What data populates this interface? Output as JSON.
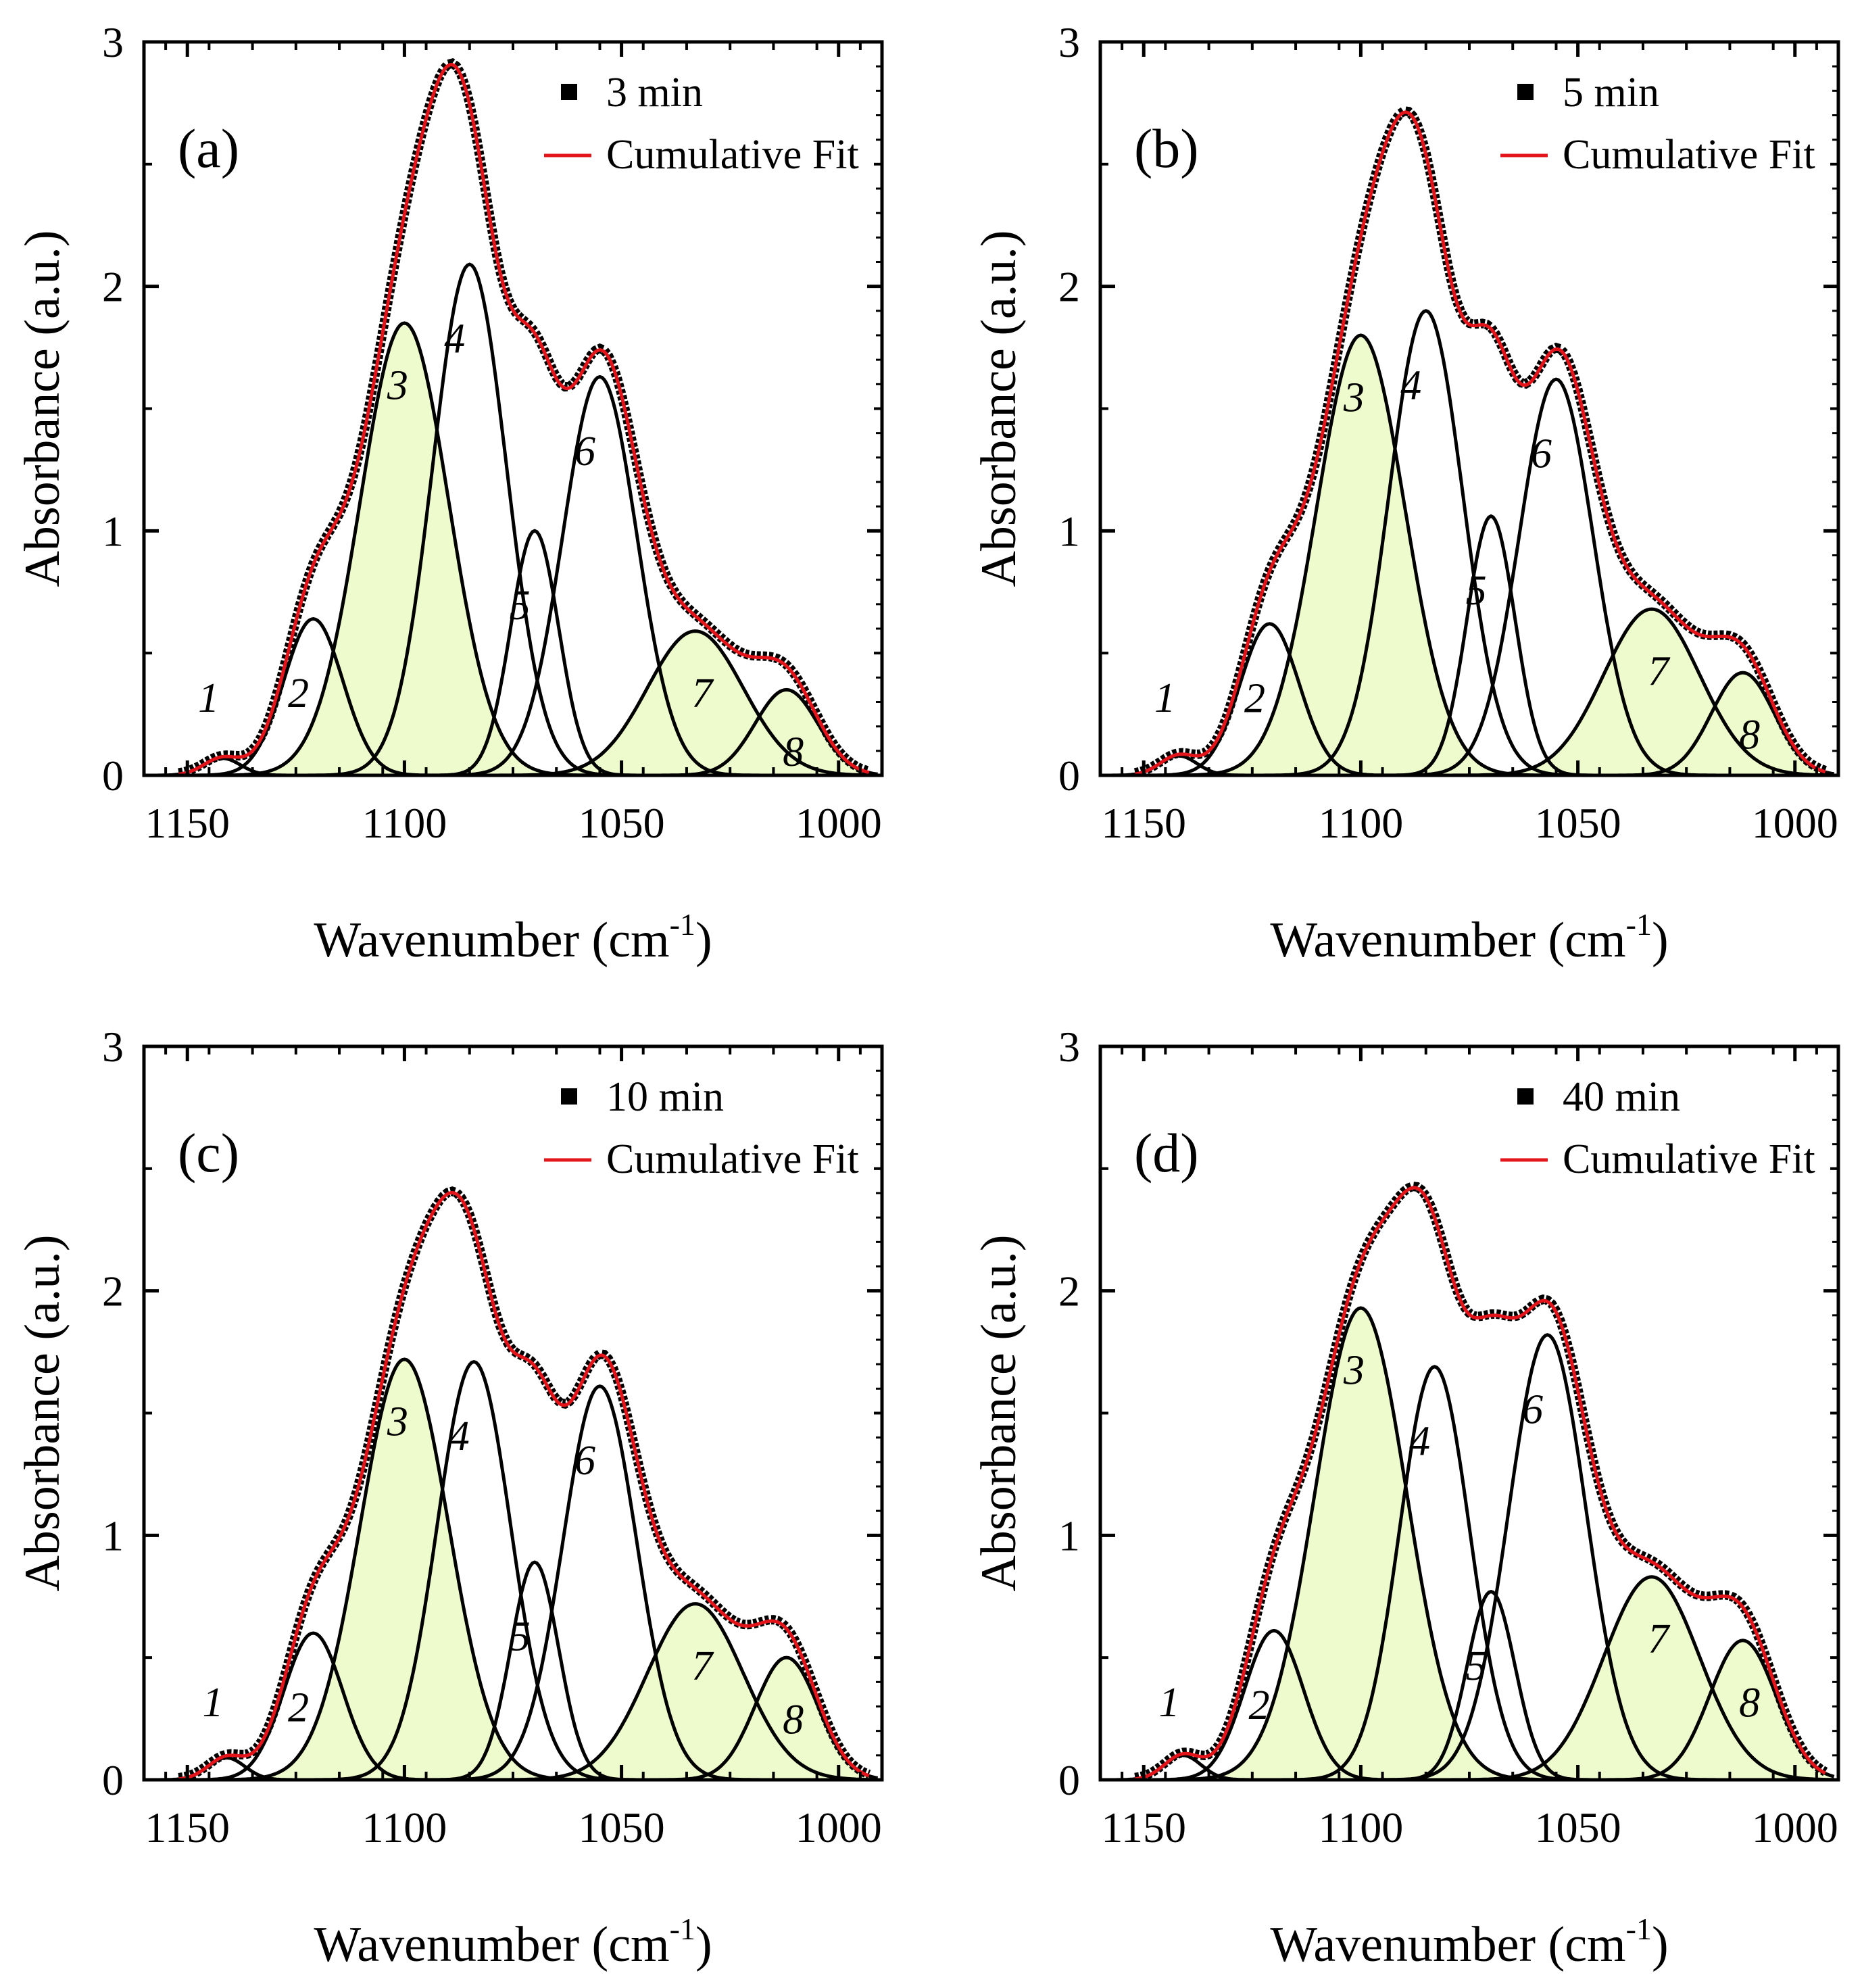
{
  "figure": {
    "colors": {
      "fill": "#eefbcc",
      "component": "#000000",
      "fit": "#e4141b",
      "data": "#000000"
    }
  },
  "chart_data": [
    {
      "type": "line",
      "panel_label": "(a)",
      "title": "",
      "xlabel": "Wavenumber (cm",
      "xlabel_sup": "-1",
      "xlabel_end": ")",
      "ylabel": "Absorbance (a.u.)",
      "xlim": [
        1160,
        990
      ],
      "ylim": [
        0,
        3
      ],
      "xticks": [
        1150,
        1100,
        1050,
        1000
      ],
      "yticks": [
        0,
        1,
        2,
        3
      ],
      "legend": [
        "3 min",
        "Cumulative Fit"
      ],
      "legend_position": "top-right",
      "peaks": [
        {
          "label": "1",
          "center": 1142,
          "amplitude": 0.07,
          "fwhm": 10,
          "filled": false
        },
        {
          "label": "2",
          "center": 1121,
          "amplitude": 0.64,
          "fwhm": 16,
          "filled": false
        },
        {
          "label": "3",
          "center": 1100,
          "amplitude": 1.85,
          "fwhm": 24,
          "filled": true
        },
        {
          "label": "4",
          "center": 1085,
          "amplitude": 2.09,
          "fwhm": 20,
          "filled": false
        },
        {
          "label": "5",
          "center": 1070,
          "amplitude": 1.0,
          "fwhm": 13,
          "filled": false
        },
        {
          "label": "6",
          "center": 1055,
          "amplitude": 1.63,
          "fwhm": 20,
          "filled": false
        },
        {
          "label": "7",
          "center": 1033,
          "amplitude": 0.59,
          "fwhm": 26,
          "filled": true
        },
        {
          "label": "8",
          "center": 1012,
          "amplitude": 0.35,
          "fwhm": 17,
          "filled": true
        }
      ]
    },
    {
      "type": "line",
      "panel_label": "(b)",
      "title": "",
      "xlabel": "Wavenumber (cm",
      "xlabel_sup": "-1",
      "xlabel_end": ")",
      "ylabel": "Absorbance (a.u.)",
      "xlim": [
        1160,
        990
      ],
      "ylim": [
        0,
        3
      ],
      "xticks": [
        1150,
        1100,
        1050,
        1000
      ],
      "yticks": [
        0,
        1,
        2,
        3
      ],
      "legend": [
        "5 min",
        "Cumulative Fit"
      ],
      "legend_position": "top-right",
      "peaks": [
        {
          "label": "1",
          "center": 1142,
          "amplitude": 0.08,
          "fwhm": 10,
          "filled": false
        },
        {
          "label": "2",
          "center": 1121,
          "amplitude": 0.62,
          "fwhm": 16,
          "filled": false
        },
        {
          "label": "3",
          "center": 1100,
          "amplitude": 1.8,
          "fwhm": 24,
          "filled": true
        },
        {
          "label": "4",
          "center": 1085,
          "amplitude": 1.9,
          "fwhm": 20,
          "filled": false
        },
        {
          "label": "5",
          "center": 1070,
          "amplitude": 1.06,
          "fwhm": 13,
          "filled": false
        },
        {
          "label": "6",
          "center": 1055,
          "amplitude": 1.62,
          "fwhm": 20,
          "filled": false
        },
        {
          "label": "7",
          "center": 1033,
          "amplitude": 0.68,
          "fwhm": 26,
          "filled": true
        },
        {
          "label": "8",
          "center": 1012,
          "amplitude": 0.42,
          "fwhm": 17,
          "filled": true
        }
      ]
    },
    {
      "type": "line",
      "panel_label": "(c)",
      "title": "",
      "xlabel": "Wavenumber (cm",
      "xlabel_sup": "-1",
      "xlabel_end": ")",
      "ylabel": "Absorbance (a.u.)",
      "xlim": [
        1160,
        990
      ],
      "ylim": [
        0,
        3
      ],
      "xticks": [
        1150,
        1100,
        1050,
        1000
      ],
      "yticks": [
        0,
        1,
        2,
        3
      ],
      "legend": [
        "10 min",
        "Cumulative Fit"
      ],
      "legend_position": "top-right",
      "peaks": [
        {
          "label": "1",
          "center": 1141,
          "amplitude": 0.09,
          "fwhm": 10,
          "filled": false
        },
        {
          "label": "2",
          "center": 1121,
          "amplitude": 0.6,
          "fwhm": 16,
          "filled": false
        },
        {
          "label": "3",
          "center": 1100,
          "amplitude": 1.72,
          "fwhm": 24,
          "filled": true
        },
        {
          "label": "4",
          "center": 1084,
          "amplitude": 1.71,
          "fwhm": 20,
          "filled": false
        },
        {
          "label": "5",
          "center": 1070,
          "amplitude": 0.89,
          "fwhm": 13,
          "filled": false
        },
        {
          "label": "6",
          "center": 1055,
          "amplitude": 1.61,
          "fwhm": 20,
          "filled": false
        },
        {
          "label": "7",
          "center": 1033,
          "amplitude": 0.72,
          "fwhm": 26,
          "filled": true
        },
        {
          "label": "8",
          "center": 1012,
          "amplitude": 0.5,
          "fwhm": 17,
          "filled": true
        }
      ]
    },
    {
      "type": "line",
      "panel_label": "(d)",
      "title": "",
      "xlabel": "Wavenumber (cm",
      "xlabel_sup": "-1",
      "xlabel_end": ")",
      "ylabel": "Absorbance (a.u.)",
      "xlim": [
        1160,
        990
      ],
      "ylim": [
        0,
        3
      ],
      "xticks": [
        1150,
        1100,
        1050,
        1000
      ],
      "yticks": [
        0,
        1,
        2,
        3
      ],
      "legend": [
        "40 min",
        "Cumulative Fit"
      ],
      "legend_position": "top-right",
      "peaks": [
        {
          "label": "1",
          "center": 1141,
          "amplitude": 0.1,
          "fwhm": 10,
          "filled": false
        },
        {
          "label": "2",
          "center": 1120,
          "amplitude": 0.61,
          "fwhm": 16,
          "filled": false
        },
        {
          "label": "3",
          "center": 1100,
          "amplitude": 1.93,
          "fwhm": 25,
          "filled": true
        },
        {
          "label": "4",
          "center": 1083,
          "amplitude": 1.69,
          "fwhm": 19,
          "filled": false
        },
        {
          "label": "5",
          "center": 1070,
          "amplitude": 0.77,
          "fwhm": 13,
          "filled": false
        },
        {
          "label": "6",
          "center": 1057,
          "amplitude": 1.82,
          "fwhm": 21,
          "filled": false
        },
        {
          "label": "7",
          "center": 1033,
          "amplitude": 0.83,
          "fwhm": 26,
          "filled": true
        },
        {
          "label": "8",
          "center": 1012,
          "amplitude": 0.57,
          "fwhm": 18,
          "filled": true
        }
      ]
    }
  ]
}
